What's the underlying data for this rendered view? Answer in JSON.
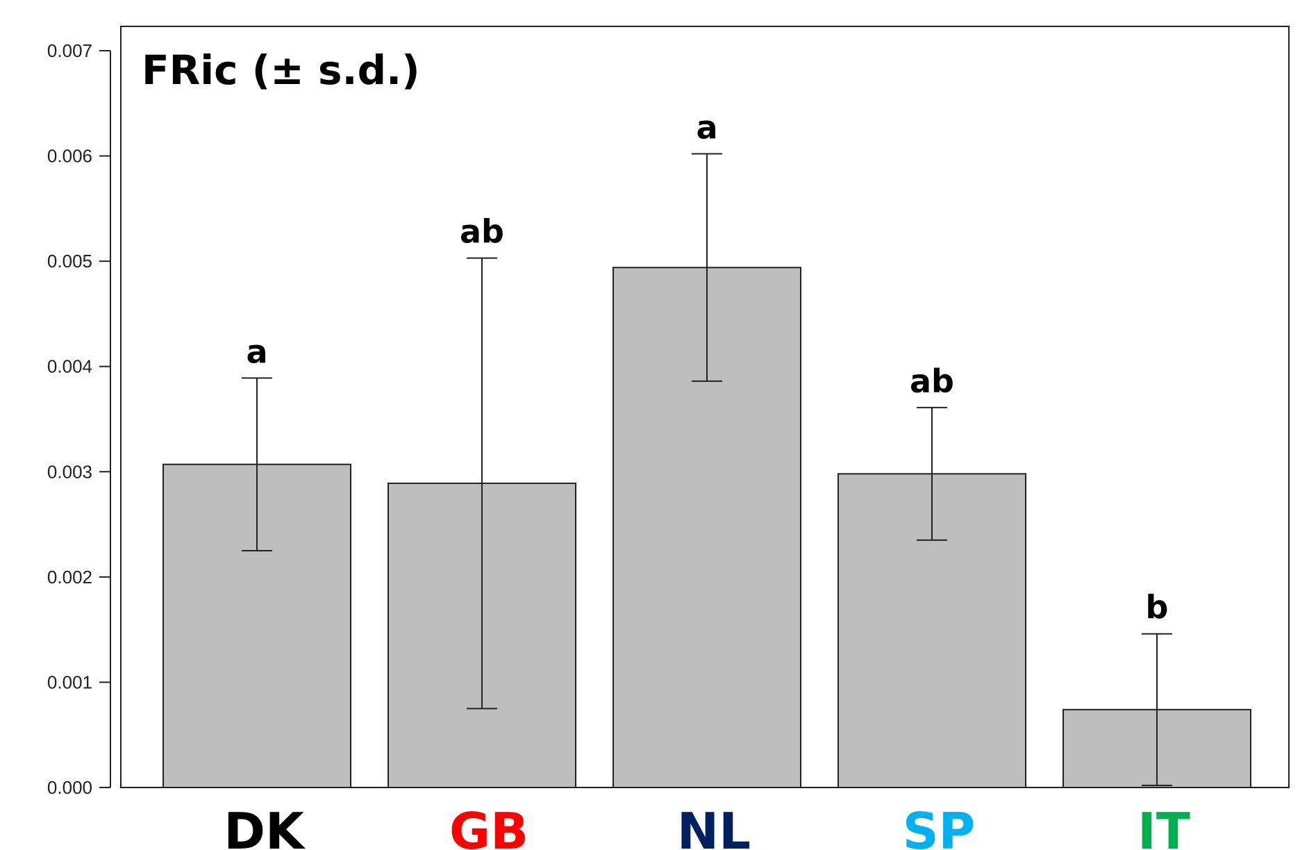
{
  "chart_data": {
    "type": "bar",
    "title": "FRic (± s.d.)",
    "categories": [
      "DK",
      "GB",
      "NL",
      "SP",
      "IT"
    ],
    "category_colors": [
      "#000000",
      "#ff0000",
      "#002060",
      "#00b0f0",
      "#00b050"
    ],
    "values": [
      0.00307,
      0.00289,
      0.00494,
      0.00298,
      0.00074
    ],
    "sd": [
      0.00082,
      0.00214,
      0.00108,
      0.00063,
      0.00072
    ],
    "significance": [
      "a",
      "ab",
      "a",
      "ab",
      "b"
    ],
    "ylim": [
      0,
      0.007
    ],
    "yticks": [
      "0.000",
      "0.001",
      "0.002",
      "0.003",
      "0.004",
      "0.005",
      "0.006",
      "0.007"
    ],
    "xlabel": "",
    "ylabel": "",
    "grid": false,
    "bar_color": "#bebebe"
  }
}
